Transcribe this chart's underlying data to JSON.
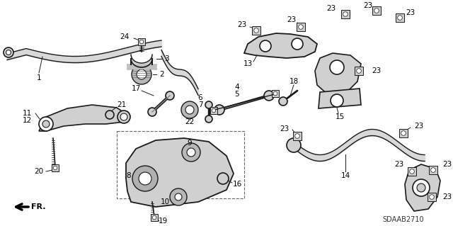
{
  "bg_color": "#ffffff",
  "line_color": "#1a1a1a",
  "diagram_code": "SDAAB2710",
  "figsize": [
    6.4,
    3.19
  ],
  "dpi": 100
}
